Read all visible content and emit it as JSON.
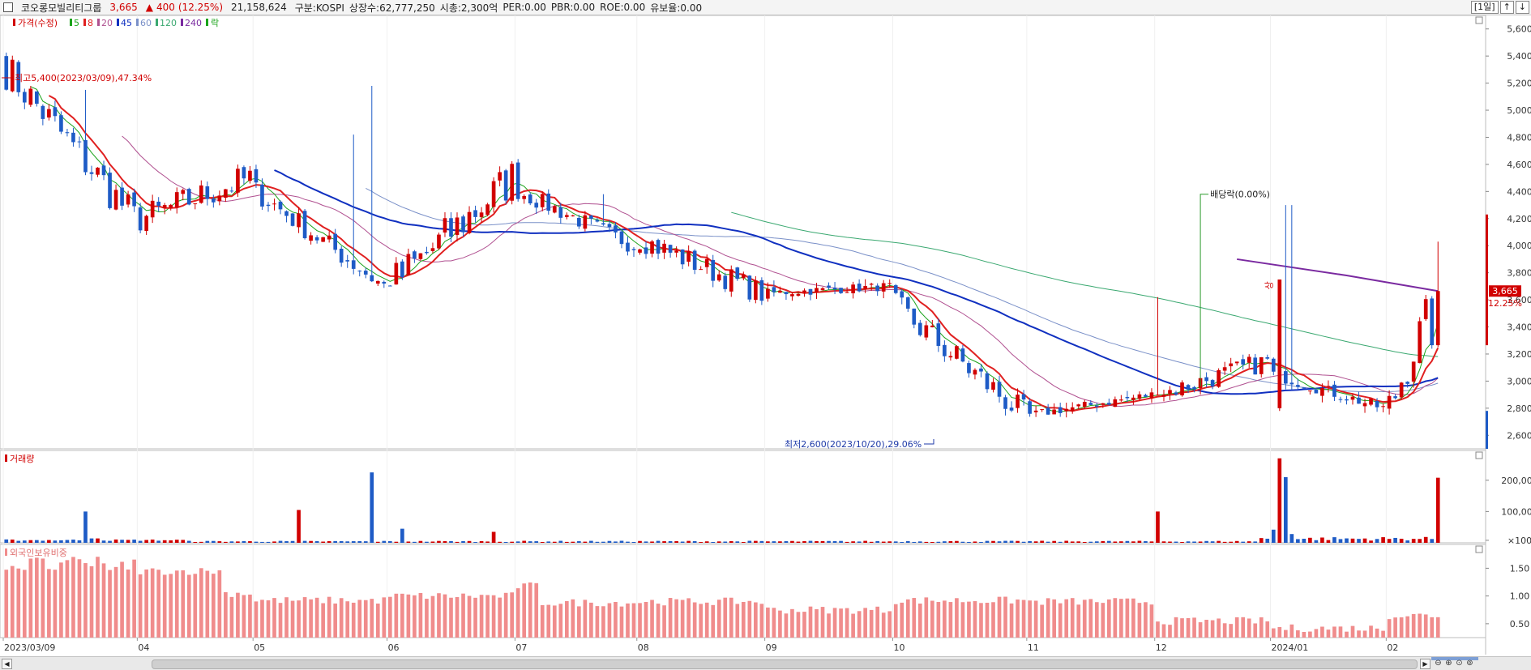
{
  "header": {
    "stock_name": "코오롱모빌리티그룹",
    "price": "3,665",
    "change_arrow": "▲",
    "change": "400",
    "change_pct": "(12.25%)",
    "volume": "21,158,624",
    "market": "구분:KOSPI",
    "listed_shares": "상장수:62,777,250",
    "market_cap": "시총:2,300억",
    "per": "PER:0.00",
    "pbr": "PBR:0.00",
    "roe": "ROE:0.00",
    "float_ratio": "유보율:0.00",
    "period_button": "[1일]",
    "btn_a": "↑",
    "btn_b": "↓"
  },
  "legend": {
    "price_label": "가격(수정)",
    "ma": [
      {
        "label": "5",
        "color": "#1aa31a"
      },
      {
        "label": "8",
        "color": "#e02020"
      },
      {
        "label": "20",
        "color": "#b05090"
      },
      {
        "label": "45",
        "color": "#1030c0"
      },
      {
        "label": "60",
        "color": "#7a90c8"
      },
      {
        "label": "120",
        "color": "#3aa870"
      },
      {
        "label": "240",
        "color": "#7a2aa0"
      }
    ],
    "drop_label": "락"
  },
  "colors": {
    "up": "#d10000",
    "down": "#1e5bc6",
    "ma5": "#1aa31a",
    "ma8": "#e02020",
    "ma20": "#b05090",
    "ma45": "#1030c0",
    "ma60": "#7a90c8",
    "ma120": "#3aa870",
    "ma240": "#7a2aa0",
    "foreign": "#f08c8c"
  },
  "chart_data": [
    {
      "type": "candlestick",
      "yticks": [
        "5,600",
        "5,400",
        "5,200",
        "5,000",
        "4,800",
        "4,600",
        "4,400",
        "4,200",
        "4,000",
        "3,800",
        "3,600",
        "3,400",
        "3,200",
        "3,000",
        "2,800",
        "2,600"
      ],
      "ylim": [
        2500,
        5700
      ],
      "x_tick_labels": [
        "2023/03/09",
        "04",
        "05",
        "06",
        "07",
        "08",
        "09",
        "10",
        "11",
        "12",
        "2024/01",
        "02"
      ],
      "monthly_ohlc": [
        {
          "month": "2023/03",
          "open": 5300,
          "high": 5400,
          "low": 4050,
          "close": 4200
        },
        {
          "month": "04",
          "open": 4200,
          "high": 5150,
          "low": 4100,
          "close": 4500
        },
        {
          "month": "05",
          "open": 4400,
          "high": 4500,
          "low": 3700,
          "close": 3700
        },
        {
          "month": "06",
          "open": 3700,
          "high": 5180,
          "low": 3700,
          "close": 4500
        },
        {
          "month": "07",
          "open": 4400,
          "high": 4500,
          "low": 3900,
          "close": 4000
        },
        {
          "month": "08",
          "open": 4050,
          "high": 4380,
          "low": 3550,
          "close": 3650
        },
        {
          "month": "09",
          "open": 3650,
          "high": 3900,
          "low": 3600,
          "close": 3700
        },
        {
          "month": "10",
          "open": 3550,
          "high": 3650,
          "low": 2600,
          "close": 2750
        },
        {
          "month": "11",
          "open": 2750,
          "high": 2950,
          "low": 2650,
          "close": 2900
        },
        {
          "month": "12",
          "open": 2900,
          "high": 3600,
          "low": 2900,
          "close": 3150
        },
        {
          "month": "2024/01",
          "open": 3050,
          "high": 3100,
          "low": 2700,
          "close": 2800
        },
        {
          "month": "02",
          "open": 2800,
          "high": 4300,
          "low": 2800,
          "close": 3665
        }
      ],
      "annotations": [
        {
          "text": "최고5,400(2023/03/09),47.34%",
          "x": "2023/03/09",
          "y": 5400
        },
        {
          "text": "최저2,600(2023/10/20),29.06%",
          "x": "2023/10/20",
          "y": 2600
        },
        {
          "text": "배당락(0.00%)",
          "x": "2023/12/27",
          "y": 4380
        },
        {
          "text": "상",
          "x": "2024/01/31",
          "y": 3750
        }
      ],
      "current_price_tag": "3,665",
      "current_change_tag": "12.25%"
    },
    {
      "type": "bar",
      "title": "거래량",
      "yticks": [
        "200,000",
        "100,000",
        "×100"
      ],
      "spikes": [
        {
          "date": "2023/04/14",
          "value": 100000
        },
        {
          "date": "2023/05/19",
          "value": 105000
        },
        {
          "date": "2023/06/09",
          "value": 225000
        },
        {
          "date": "2023/06/16",
          "value": 45000
        },
        {
          "date": "2023/07/26",
          "value": 35000
        },
        {
          "date": "2023/12/01",
          "value": 100000
        },
        {
          "date": "2024/01/31",
          "value": 270000
        },
        {
          "date": "2024/02/01",
          "value": 210000
        },
        {
          "date": "2024/02/21",
          "value": 208000
        }
      ]
    },
    {
      "type": "bar",
      "title": "외국인보유비중",
      "yticks": [
        "1.50",
        "1.00",
        "0.50"
      ],
      "ylim": [
        0.25,
        1.9
      ],
      "monthly_approx": [
        {
          "month": "2023/03",
          "value": 1.6
        },
        {
          "month": "04",
          "value": 1.45
        },
        {
          "month": "05",
          "value": 0.92
        },
        {
          "month": "06",
          "value": 1.0
        },
        {
          "month": "07",
          "value": 0.88
        },
        {
          "month": "08",
          "value": 0.9
        },
        {
          "month": "09",
          "value": 0.75
        },
        {
          "month": "10",
          "value": 0.92
        },
        {
          "month": "11",
          "value": 0.9
        },
        {
          "month": "12",
          "value": 0.55
        },
        {
          "month": "2024/01",
          "value": 0.42
        },
        {
          "month": "02",
          "value": 0.65
        }
      ]
    }
  ]
}
